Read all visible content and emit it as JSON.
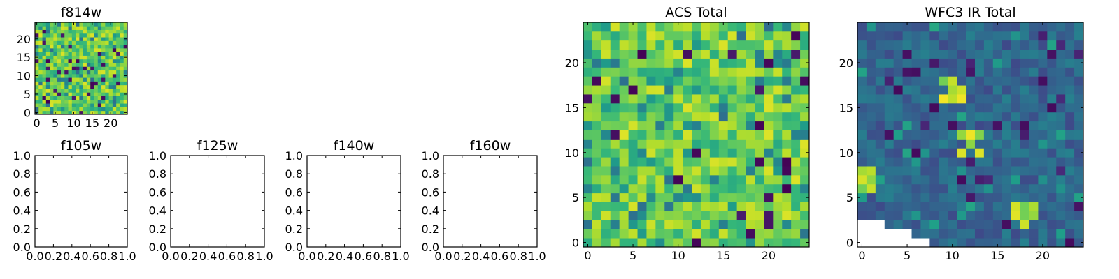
{
  "chart_data": [
    {
      "name": "f814w",
      "type": "heatmap",
      "title": "f814w",
      "grid_size": 25,
      "xticks": [
        0,
        5,
        10,
        15,
        20
      ],
      "yticks": [
        0,
        5,
        10,
        15,
        20
      ],
      "colormap": "viridis",
      "value_range": [
        0,
        1
      ],
      "seed": 814
    },
    {
      "name": "f105w",
      "type": "empty",
      "title": "f105w",
      "xticks": [
        "0.0",
        "0.2",
        "0.4",
        "0.6",
        "0.8",
        "1.0"
      ],
      "yticks": [
        "0.0",
        "0.2",
        "0.4",
        "0.6",
        "0.8",
        "1.0"
      ],
      "xlim": [
        0,
        1
      ],
      "ylim": [
        0,
        1
      ]
    },
    {
      "name": "f125w",
      "type": "empty",
      "title": "f125w",
      "xticks": [
        "0.0",
        "0.2",
        "0.4",
        "0.6",
        "0.8",
        "1.0"
      ],
      "yticks": [
        "0.0",
        "0.2",
        "0.4",
        "0.6",
        "0.8",
        "1.0"
      ],
      "xlim": [
        0,
        1
      ],
      "ylim": [
        0,
        1
      ]
    },
    {
      "name": "f140w",
      "type": "empty",
      "title": "f140w",
      "xticks": [
        "0.0",
        "0.2",
        "0.4",
        "0.6",
        "0.8",
        "1.0"
      ],
      "yticks": [
        "0.0",
        "0.2",
        "0.4",
        "0.6",
        "0.8",
        "1.0"
      ],
      "xlim": [
        0,
        1
      ],
      "ylim": [
        0,
        1
      ]
    },
    {
      "name": "f160w",
      "type": "empty",
      "title": "f160w",
      "xticks": [
        "0.0",
        "0.2",
        "0.4",
        "0.6",
        "0.8",
        "1.0"
      ],
      "yticks": [
        "0.0",
        "0.2",
        "0.4",
        "0.6",
        "0.8",
        "1.0"
      ],
      "xlim": [
        0,
        1
      ],
      "ylim": [
        0,
        1
      ]
    },
    {
      "name": "acs-total",
      "type": "heatmap",
      "title": "ACS Total",
      "grid_size": 25,
      "xticks": [
        0,
        5,
        10,
        15,
        20
      ],
      "yticks": [
        0,
        5,
        10,
        15,
        20
      ],
      "colormap": "viridis",
      "value_range": [
        0,
        1
      ],
      "seed": 2024
    },
    {
      "name": "wfc3-ir-total",
      "type": "heatmap",
      "title": "WFC3 IR Total",
      "grid_size": 25,
      "xticks": [
        0,
        5,
        10,
        15,
        20
      ],
      "yticks": [
        0,
        5,
        10,
        15,
        20
      ],
      "colormap": "viridis",
      "value_range": [
        0,
        1
      ],
      "seed": 777,
      "bright_spots": [
        [
          10,
          17
        ],
        [
          12,
          11
        ],
        [
          0,
          7
        ],
        [
          18,
          3
        ]
      ],
      "masked_region": "bottom-left corner"
    }
  ]
}
